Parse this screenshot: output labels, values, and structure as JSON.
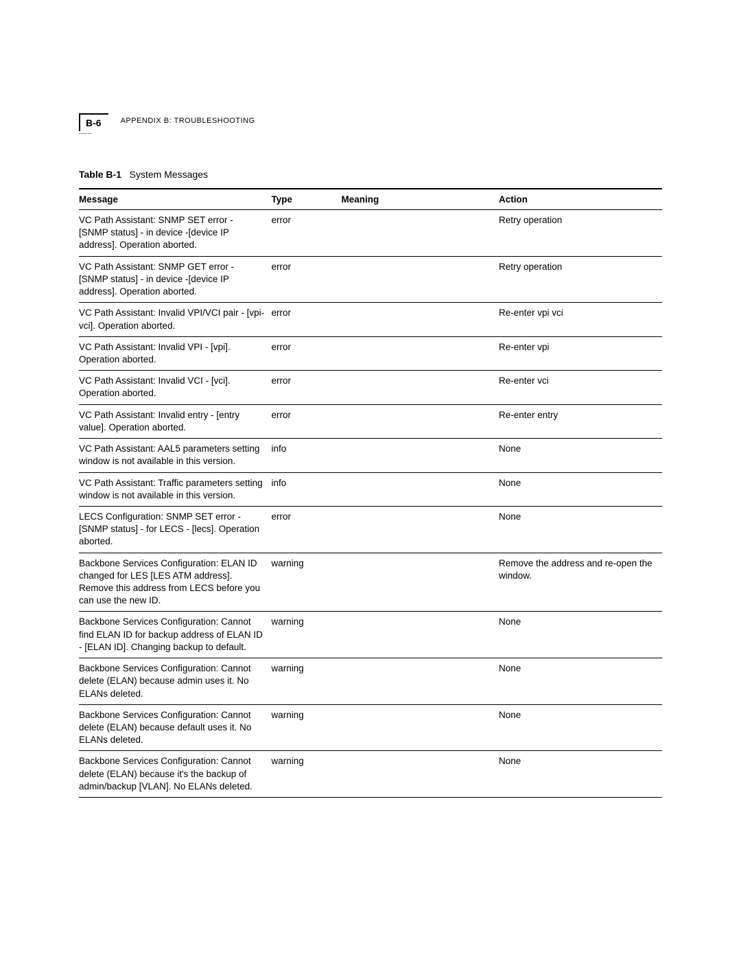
{
  "header": {
    "page_number": "B-6",
    "appendix_label": "APPENDIX B: TROUBLESHOOTING"
  },
  "table": {
    "caption_bold": "Table B-1",
    "caption_rest": "System Messages",
    "columns": {
      "message": "Message",
      "type": "Type",
      "meaning": "Meaning",
      "action": "Action"
    },
    "rows": [
      {
        "message": "VC Path Assistant: SNMP SET error - [SNMP status] - in device -[device IP address]. Operation aborted.",
        "type": "error",
        "meaning": "",
        "action": "Retry operation"
      },
      {
        "message": "VC Path Assistant: SNMP GET error - [SNMP status] - in device -[device IP address]. Operation aborted.",
        "type": "error",
        "meaning": "",
        "action": "Retry operation"
      },
      {
        "message": "VC Path Assistant: Invalid VPI/VCI pair - [vpi-vci]. Operation aborted.",
        "type": "error",
        "meaning": "",
        "action": "Re-enter vpi vci"
      },
      {
        "message": "VC Path Assistant: Invalid VPI - [vpi]. Operation aborted.",
        "type": "error",
        "meaning": "",
        "action": "Re-enter vpi"
      },
      {
        "message": "VC Path Assistant: Invalid VCI - [vci]. Operation aborted.",
        "type": "error",
        "meaning": "",
        "action": "Re-enter vci"
      },
      {
        "message": "VC Path Assistant: Invalid entry - [entry value]. Operation aborted.",
        "type": "error",
        "meaning": "",
        "action": "Re-enter entry"
      },
      {
        "message": "VC Path Assistant: AAL5 parameters setting window is not available in this version.",
        "type": "info",
        "meaning": "",
        "action": "None"
      },
      {
        "message": "VC Path Assistant: Traffic parameters setting window is not available in this version.",
        "type": "info",
        "meaning": "",
        "action": "None"
      },
      {
        "message": "LECS Configuration: SNMP SET error - [SNMP status] - for LECS - [lecs]. Operation aborted.",
        "type": "error",
        "meaning": "",
        "action": "None"
      },
      {
        "message": "Backbone Services Configuration: ELAN ID changed for LES [LES ATM address]. Remove this address from LECS before you can use the new ID.",
        "type": "warning",
        "meaning": "",
        "action": "Remove the address and re-open the window."
      },
      {
        "message": "Backbone Services Configuration: Cannot find ELAN ID for backup address of ELAN ID - [ELAN ID]. Changing backup to default.",
        "type": "warning",
        "meaning": "",
        "action": "None"
      },
      {
        "message": "Backbone Services Configuration: Cannot delete (ELAN) because admin uses it. No ELANs deleted.",
        "type": "warning",
        "meaning": "",
        "action": "None"
      },
      {
        "message": "Backbone Services Configuration: Cannot delete (ELAN) because default uses it. No ELANs deleted.",
        "type": "warning",
        "meaning": "",
        "action": "None"
      },
      {
        "message": "Backbone Services Configuration: Cannot delete (ELAN) because it's the backup of admin/backup [VLAN]. No ELANs deleted.",
        "type": "warning",
        "meaning": "",
        "action": "None"
      }
    ]
  }
}
